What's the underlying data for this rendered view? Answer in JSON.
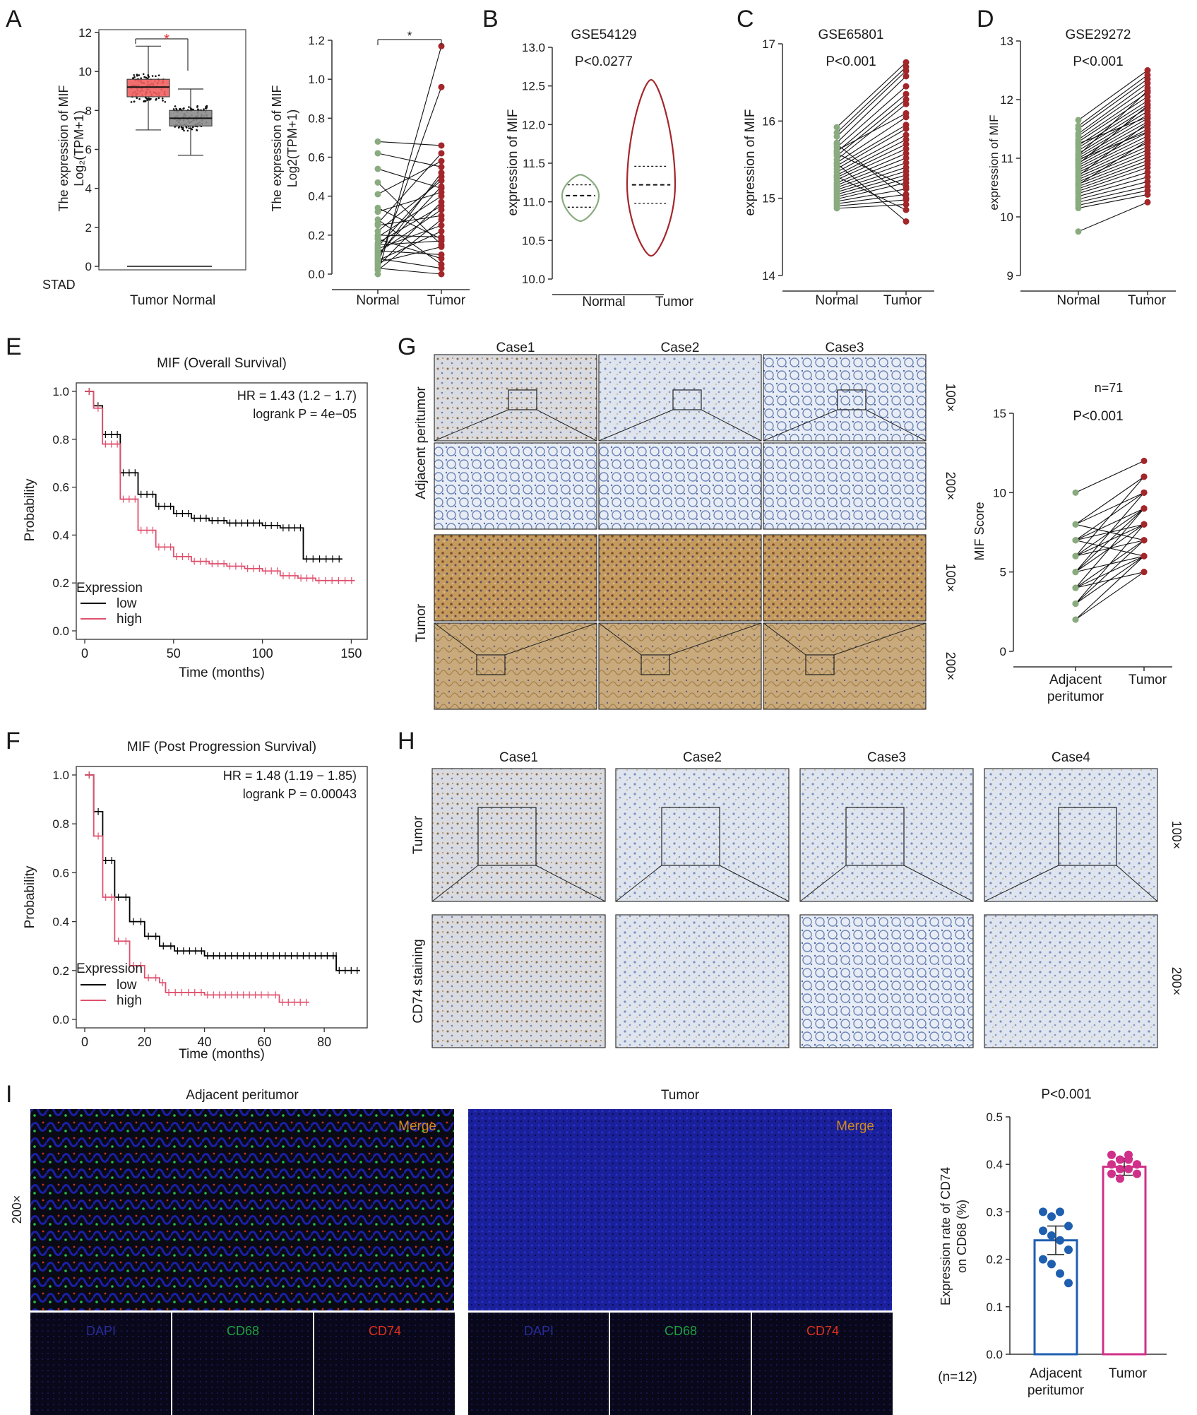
{
  "chart_data": [
    {
      "panel": "A",
      "type": "box",
      "dataset_label": "STAD",
      "categories": [
        "Tumor",
        "Normal"
      ],
      "ylabel": "The expression of MIF",
      "ylabel2": "Log₂(TPM+1)",
      "ylim": [
        0,
        12
      ],
      "yticks": [
        0,
        2,
        4,
        6,
        8,
        10,
        12
      ],
      "significance": "*",
      "boxes": [
        {
          "name": "Tumor",
          "min": 7.0,
          "q1": 8.7,
          "median": 9.2,
          "q3": 9.6,
          "max": 11.3,
          "color": "#f06060"
        },
        {
          "name": "Normal",
          "min": 5.7,
          "q1": 7.2,
          "median": 7.6,
          "q3": 8.0,
          "max": 9.1,
          "color": "#8c8c8c"
        }
      ]
    },
    {
      "panel": "A2",
      "type": "paired",
      "categories": [
        "Normal",
        "Tumor"
      ],
      "ylabel": "The expression of MIF",
      "ylabel2": "Log2(TPM+1)",
      "ylim": [
        0,
        1.2
      ],
      "yticks": [
        0.0,
        0.2,
        0.4,
        0.6,
        0.8,
        1.0,
        1.2
      ],
      "significance": "*",
      "pairs": [
        [
          0.0,
          1.17
        ],
        [
          0.05,
          0.96
        ],
        [
          0.68,
          0.66
        ],
        [
          0.62,
          0.55
        ],
        [
          0.41,
          0.58
        ],
        [
          0.32,
          0.42
        ],
        [
          0.28,
          0.05
        ],
        [
          0.25,
          0.3
        ],
        [
          0.22,
          0.48
        ],
        [
          0.2,
          0.19
        ],
        [
          0.19,
          0.4
        ],
        [
          0.18,
          0.08
        ],
        [
          0.16,
          0.35
        ],
        [
          0.15,
          0.17
        ],
        [
          0.13,
          0.25
        ],
        [
          0.12,
          0.1
        ],
        [
          0.11,
          0.33
        ],
        [
          0.1,
          0.45
        ],
        [
          0.09,
          0.52
        ],
        [
          0.08,
          0.03
        ],
        [
          0.07,
          0.22
        ],
        [
          0.06,
          0.14
        ],
        [
          0.04,
          0.37
        ],
        [
          0.03,
          0.0
        ],
        [
          0.02,
          0.28
        ],
        [
          0.34,
          0.18
        ],
        [
          0.54,
          0.44
        ],
        [
          0.26,
          0.62
        ],
        [
          0.14,
          0.5
        ],
        [
          0.47,
          0.15
        ]
      ]
    },
    {
      "panel": "B",
      "type": "violin",
      "title": "GSE54129",
      "pvalue": "P<0.0277",
      "categories": [
        "Normal",
        "Tumor"
      ],
      "ylabel": "expression of MIF",
      "ylim": [
        10.0,
        13.0
      ],
      "yticks": [
        10.0,
        10.5,
        11.0,
        11.5,
        12.0,
        12.5,
        13.0
      ],
      "series": [
        {
          "name": "Normal",
          "min": 10.75,
          "q1": 10.93,
          "median": 11.08,
          "q3": 11.22,
          "max": 11.35,
          "color": "#8aab80"
        },
        {
          "name": "Tumor",
          "min": 10.3,
          "q1": 10.98,
          "median": 11.22,
          "q3": 11.46,
          "max": 12.58,
          "color": "#a3262b"
        }
      ]
    },
    {
      "panel": "C",
      "type": "paired",
      "title": "GSE65801",
      "pvalue": "P<0.001",
      "categories": [
        "Normal",
        "Tumor"
      ],
      "ylabel": "expression of MIF",
      "ylim": [
        14,
        17
      ],
      "yticks": [
        14,
        15,
        16,
        17
      ],
      "pairs": [
        [
          15.92,
          16.76
        ],
        [
          15.85,
          16.7
        ],
        [
          15.8,
          16.65
        ],
        [
          15.72,
          16.58
        ],
        [
          15.66,
          16.45
        ],
        [
          15.6,
          16.35
        ],
        [
          15.55,
          16.28
        ],
        [
          15.5,
          16.22
        ],
        [
          15.46,
          16.05
        ],
        [
          15.42,
          15.95
        ],
        [
          15.38,
          15.9
        ],
        [
          15.34,
          15.82
        ],
        [
          15.3,
          15.76
        ],
        [
          15.27,
          15.7
        ],
        [
          15.24,
          15.64
        ],
        [
          15.2,
          15.58
        ],
        [
          15.17,
          15.52
        ],
        [
          15.14,
          15.46
        ],
        [
          15.11,
          15.4
        ],
        [
          15.08,
          15.35
        ],
        [
          15.05,
          15.3
        ],
        [
          15.02,
          15.25
        ],
        [
          14.99,
          15.2
        ],
        [
          14.96,
          15.12
        ],
        [
          14.93,
          15.05
        ],
        [
          14.9,
          14.98
        ],
        [
          14.87,
          14.92
        ],
        [
          15.7,
          15.0
        ],
        [
          15.45,
          14.7
        ],
        [
          15.28,
          14.85
        ],
        [
          15.58,
          15.15
        ],
        [
          15.62,
          16.1
        ]
      ]
    },
    {
      "panel": "D",
      "type": "paired",
      "title": "GSE29272",
      "pvalue": "P<0.001",
      "categories": [
        "Normal",
        "Tumor"
      ],
      "ylabel": "expression of MIF",
      "ylim": [
        9,
        13
      ],
      "yticks": [
        9,
        10,
        11,
        12,
        13
      ],
      "pairs": [
        [
          11.65,
          12.5
        ],
        [
          11.55,
          12.42
        ],
        [
          11.5,
          12.35
        ],
        [
          11.42,
          12.28
        ],
        [
          11.38,
          12.2
        ],
        [
          11.32,
          12.12
        ],
        [
          11.28,
          12.05
        ],
        [
          11.22,
          11.98
        ],
        [
          11.18,
          11.92
        ],
        [
          11.13,
          11.86
        ],
        [
          11.08,
          11.8
        ],
        [
          11.04,
          11.74
        ],
        [
          11.0,
          11.68
        ],
        [
          10.96,
          11.62
        ],
        [
          10.92,
          11.56
        ],
        [
          10.88,
          11.5
        ],
        [
          10.84,
          11.44
        ],
        [
          10.8,
          11.38
        ],
        [
          10.76,
          11.32
        ],
        [
          10.72,
          11.26
        ],
        [
          10.68,
          11.2
        ],
        [
          10.64,
          11.14
        ],
        [
          10.6,
          11.08
        ],
        [
          10.56,
          11.02
        ],
        [
          10.52,
          10.96
        ],
        [
          10.48,
          10.9
        ],
        [
          10.44,
          10.84
        ],
        [
          10.4,
          10.76
        ],
        [
          10.35,
          10.68
        ],
        [
          10.3,
          10.6
        ],
        [
          10.25,
          10.52
        ],
        [
          10.2,
          10.45
        ],
        [
          10.15,
          10.38
        ],
        [
          9.75,
          10.25
        ],
        [
          11.25,
          11.7
        ],
        [
          10.9,
          11.9
        ],
        [
          10.7,
          11.6
        ],
        [
          11.05,
          12.15
        ],
        [
          10.55,
          11.3
        ],
        [
          10.98,
          11.45
        ]
      ]
    },
    {
      "panel": "E",
      "type": "line",
      "title": "MIF (Overall Survival)",
      "hr": "HR = 1.43 (1.2 − 1.7)",
      "logrank": "logrank P = 4e−05",
      "xlabel": "Time (months)",
      "ylabel": "Probability",
      "xlim": [
        0,
        155
      ],
      "ylim": [
        0,
        1.0
      ],
      "xticks": [
        0,
        50,
        100,
        150
      ],
      "yticks": [
        0.0,
        0.2,
        0.4,
        0.6,
        0.8,
        1.0
      ],
      "legend_title": "Expression",
      "series": [
        {
          "name": "low",
          "color": "#000000",
          "x": [
            0,
            5,
            10,
            20,
            30,
            40,
            50,
            60,
            70,
            80,
            90,
            100,
            110,
            123,
            123,
            145
          ],
          "y": [
            1.0,
            0.94,
            0.82,
            0.66,
            0.57,
            0.52,
            0.49,
            0.47,
            0.46,
            0.45,
            0.45,
            0.44,
            0.43,
            0.38,
            0.3,
            0.3
          ]
        },
        {
          "name": "high",
          "color": "#e0506e",
          "x": [
            0,
            5,
            10,
            20,
            30,
            40,
            50,
            60,
            70,
            80,
            90,
            100,
            110,
            120,
            130,
            152
          ],
          "y": [
            1.0,
            0.93,
            0.78,
            0.55,
            0.42,
            0.35,
            0.31,
            0.29,
            0.28,
            0.27,
            0.26,
            0.25,
            0.23,
            0.22,
            0.21,
            0.21
          ]
        }
      ]
    },
    {
      "panel": "F",
      "type": "line",
      "title": "MIF (Post Progression Survival)",
      "hr": "HR = 1.48 (1.19 − 1.85)",
      "logrank": "logrank P = 0.00043",
      "xlabel": "Time (months)",
      "ylabel": "Probability",
      "xlim": [
        0,
        92
      ],
      "ylim": [
        0,
        1.0
      ],
      "xticks": [
        0,
        20,
        40,
        60,
        80
      ],
      "yticks": [
        0.0,
        0.2,
        0.4,
        0.6,
        0.8,
        1.0
      ],
      "legend_title": "Expression",
      "series": [
        {
          "name": "low",
          "color": "#000000",
          "x": [
            0,
            3,
            6,
            10,
            15,
            20,
            25,
            30,
            40,
            50,
            60,
            70,
            84,
            84,
            92
          ],
          "y": [
            1.0,
            0.85,
            0.65,
            0.5,
            0.4,
            0.34,
            0.3,
            0.28,
            0.26,
            0.26,
            0.26,
            0.26,
            0.26,
            0.2,
            0.2
          ]
        },
        {
          "name": "high",
          "color": "#e0506e",
          "x": [
            0,
            3,
            6,
            10,
            15,
            20,
            25,
            27,
            40,
            50,
            60,
            65,
            75
          ],
          "y": [
            1.0,
            0.75,
            0.5,
            0.32,
            0.22,
            0.17,
            0.15,
            0.11,
            0.1,
            0.1,
            0.1,
            0.07,
            0.07
          ]
        }
      ]
    },
    {
      "panel": "G",
      "type": "paired",
      "n_label": "n=71",
      "pvalue": "P<0.001",
      "categories": [
        "Adjacent peritumor",
        "Tumor"
      ],
      "ylabel": "MIF Score",
      "ylim": [
        0,
        15
      ],
      "yticks": [
        0,
        5,
        10,
        15
      ],
      "pairs": [
        [
          10,
          12
        ],
        [
          8,
          11
        ],
        [
          8,
          10
        ],
        [
          7,
          9
        ],
        [
          7,
          8
        ],
        [
          6,
          9
        ],
        [
          6,
          7
        ],
        [
          5,
          8
        ],
        [
          5,
          6
        ],
        [
          4,
          7
        ],
        [
          4,
          5
        ],
        [
          3,
          6
        ],
        [
          3,
          8
        ],
        [
          2,
          5
        ],
        [
          6,
          11
        ],
        [
          5,
          10
        ],
        [
          7,
          6
        ],
        [
          8,
          7
        ],
        [
          4,
          9
        ],
        [
          3,
          7
        ],
        [
          2,
          6
        ],
        [
          5,
          9
        ],
        [
          6,
          8
        ],
        [
          7,
          10
        ],
        [
          4,
          6
        ]
      ]
    },
    {
      "panel": "I",
      "type": "bar",
      "pvalue": "P<0.001",
      "categories": [
        "Adjacent peritumor",
        "Tumor"
      ],
      "n_label": "(n=12)",
      "ylabel": "Expression rate of CD74",
      "ylabel2": "on CD68 (%)",
      "ylim": [
        0,
        0.5
      ],
      "yticks": [
        0.0,
        0.1,
        0.2,
        0.3,
        0.4,
        0.5
      ],
      "values": [
        0.24,
        0.395
      ],
      "errors": [
        0.03,
        0.018
      ],
      "points": [
        [
          0.3,
          0.29,
          0.3,
          0.27,
          0.26,
          0.25,
          0.24,
          0.22,
          0.2,
          0.19,
          0.17,
          0.15
        ],
        [
          0.42,
          0.41,
          0.42,
          0.4,
          0.4,
          0.39,
          0.39,
          0.38,
          0.38,
          0.37,
          0.41,
          0.4
        ]
      ],
      "colors": [
        "#1f5fb0",
        "#d0308a"
      ]
    }
  ],
  "panel_letters": {
    "a": "A",
    "b": "B",
    "c": "C",
    "d": "D",
    "e": "E",
    "f": "F",
    "g": "G",
    "h": "H",
    "i": "I"
  },
  "micrographs": {
    "g_cases": [
      "Case1",
      "Case2",
      "Case3"
    ],
    "g_rows": [
      "Adjacent peritumor",
      "Tumor"
    ],
    "g_mags": [
      "100×",
      "200×",
      "100×",
      "200×"
    ],
    "h_cases": [
      "Case1",
      "Case2",
      "Case3",
      "Case4"
    ],
    "h_rows": [
      "Tumor",
      "CD74 staining"
    ],
    "h_mags": [
      "100×",
      "200×"
    ],
    "i_headers": [
      "Adjacent peritumor",
      "Tumor"
    ],
    "i_mag": "200×",
    "i_merge": "Merge",
    "i_channels": [
      "DAPI",
      "CD68",
      "CD74"
    ]
  }
}
